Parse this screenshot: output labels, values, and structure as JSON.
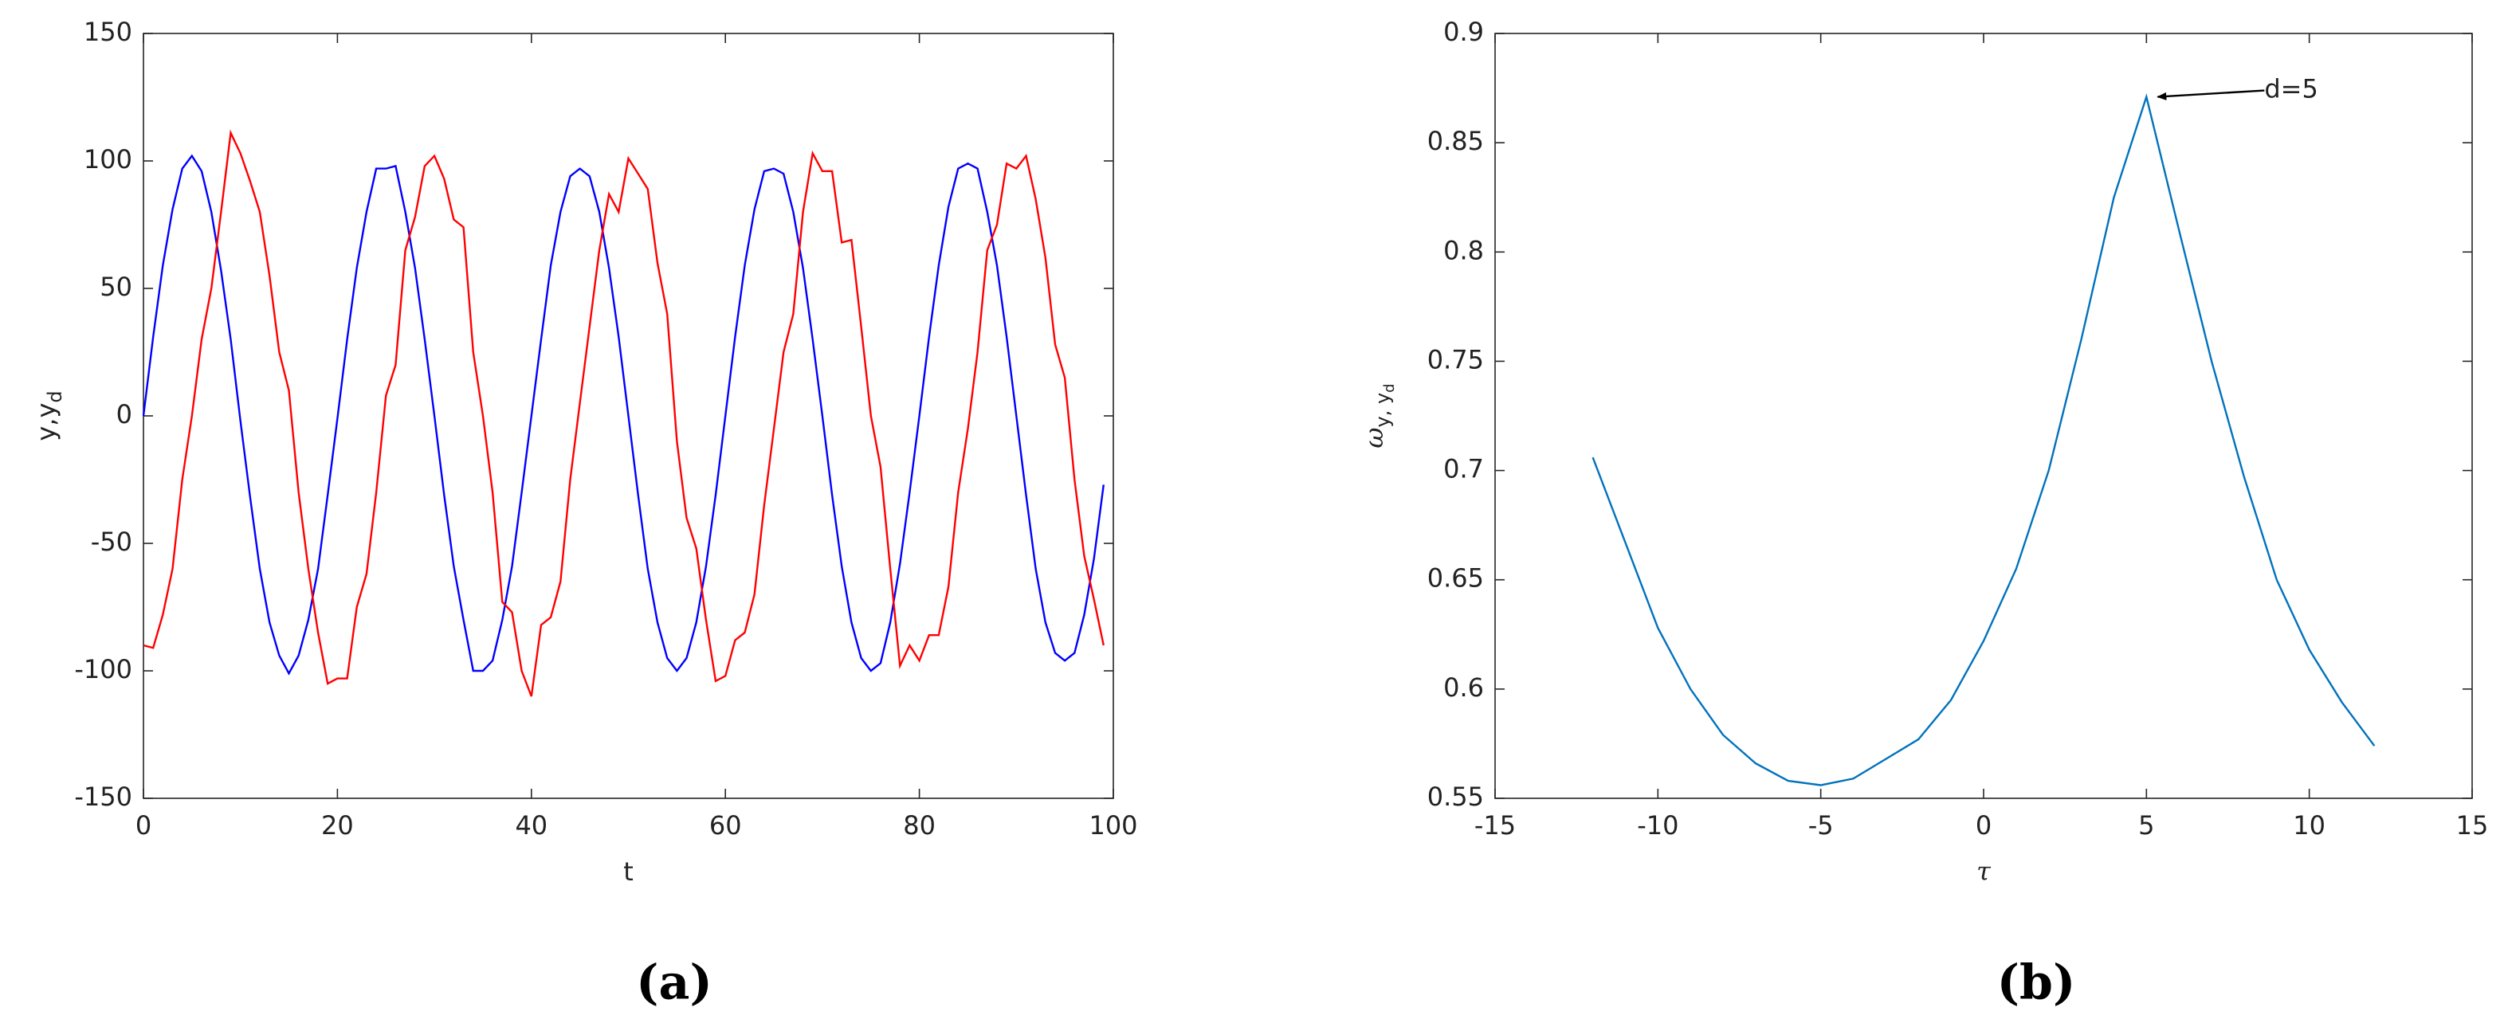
{
  "chart_data": [
    {
      "type": "line",
      "caption": "(a)",
      "xlabel": "t",
      "ylabel": [
        "y,y",
        "d"
      ],
      "x": [
        0,
        1,
        2,
        3,
        4,
        5,
        6,
        7,
        8,
        9,
        10,
        11,
        12,
        13,
        14,
        15,
        16,
        17,
        18,
        19,
        20,
        21,
        22,
        23,
        24,
        25,
        26,
        27,
        28,
        29,
        30,
        31,
        32,
        33,
        34,
        35,
        36,
        37,
        38,
        39,
        40,
        41,
        42,
        43,
        44,
        45,
        46,
        47,
        48,
        49,
        50,
        51,
        52,
        53,
        54,
        55,
        56,
        57,
        58,
        59,
        60,
        61,
        62,
        63,
        64,
        65,
        66,
        67,
        68,
        69,
        70,
        71,
        72,
        73,
        74,
        75,
        76,
        77,
        78,
        79,
        80,
        81,
        82,
        83,
        84,
        85,
        86,
        87,
        88,
        89,
        90,
        91,
        92,
        93,
        94,
        95,
        96,
        97,
        98,
        99
      ],
      "series": [
        {
          "color": "#0000ff",
          "values": [
            0,
            31,
            59,
            81,
            97,
            102,
            96,
            80,
            57,
            30,
            -2,
            -32,
            -60,
            -81,
            -94,
            -101,
            -94,
            -80,
            -60,
            -31,
            -1,
            30,
            58,
            80,
            97,
            97,
            98,
            80,
            58,
            30,
            0,
            -31,
            -59,
            -80,
            -100,
            -100,
            -96,
            -80,
            -59,
            -30,
            0,
            30,
            59,
            80,
            94,
            97,
            94,
            80,
            58,
            31,
            0,
            -31,
            -60,
            -81,
            -95,
            -100,
            -95,
            -81,
            -59,
            -31,
            0,
            31,
            59,
            81,
            96,
            97,
            95,
            80,
            58,
            30,
            0,
            -31,
            -59,
            -81,
            -95,
            -100,
            -97,
            -81,
            -58,
            -30,
            0,
            31,
            59,
            82,
            97,
            99,
            97,
            80,
            59,
            31,
            0,
            -31,
            -60,
            -81,
            -93,
            -96,
            -93,
            -78,
            -56,
            -27
          ]
        },
        {
          "color": "#ff0000",
          "values": [
            -90,
            -91,
            -78,
            -60,
            -25,
            0,
            30,
            50,
            80,
            111,
            103,
            92,
            80,
            55,
            25,
            10,
            -30,
            -60,
            -85,
            -105,
            -103,
            -103,
            -75,
            -62,
            -30,
            8,
            20,
            65,
            78,
            98,
            102,
            93,
            77,
            74,
            25,
            0,
            -30,
            -73,
            -77,
            -100,
            -110,
            -82,
            -79,
            -65,
            -25,
            5,
            35,
            65,
            87,
            80,
            101,
            95,
            89,
            60,
            40,
            -10,
            -40,
            -52,
            -80,
            -104,
            -102,
            -88,
            -85,
            -70,
            -35,
            -5,
            25,
            40,
            80,
            103,
            96,
            96,
            68,
            69,
            35,
            0,
            -20,
            -60,
            -98,
            -90,
            -96,
            -86,
            -86,
            -67,
            -30,
            -5,
            25,
            65,
            75,
            99,
            97,
            102,
            85,
            62,
            28,
            15,
            -25,
            -55,
            -72,
            -90
          ]
        }
      ],
      "xlim": [
        0,
        100
      ],
      "xticks": [
        0,
        20,
        40,
        60,
        80,
        100
      ],
      "ylim": [
        -150,
        150
      ],
      "yticks": [
        -150,
        -100,
        -50,
        0,
        50,
        100,
        150
      ]
    },
    {
      "type": "line",
      "caption": "(b)",
      "xlabel": "τ",
      "ylabel": [
        "ω",
        "y, y",
        "d"
      ],
      "annotation": "d=5",
      "x": [
        -12,
        -11,
        -10,
        -9,
        -8,
        -7,
        -6,
        -5,
        -4,
        -3,
        -2,
        -1,
        0,
        1,
        2,
        3,
        4,
        5,
        6,
        7,
        8,
        9,
        10,
        11,
        12
      ],
      "series": [
        {
          "color": "#0072bd",
          "values": [
            0.706,
            0.667,
            0.628,
            0.6,
            0.579,
            0.566,
            0.558,
            0.556,
            0.559,
            0.568,
            0.577,
            0.595,
            0.622,
            0.655,
            0.7,
            0.76,
            0.825,
            0.871,
            0.81,
            0.75,
            0.697,
            0.65,
            0.618,
            0.594,
            0.574
          ]
        }
      ],
      "xlim": [
        -15,
        15
      ],
      "xticks": [
        -15,
        -10,
        -5,
        0,
        5,
        10,
        15
      ],
      "ylim": [
        0.55,
        0.9
      ],
      "yticks": [
        0.55,
        0.6,
        0.65,
        0.7,
        0.75,
        0.8,
        0.85,
        0.9
      ]
    }
  ]
}
